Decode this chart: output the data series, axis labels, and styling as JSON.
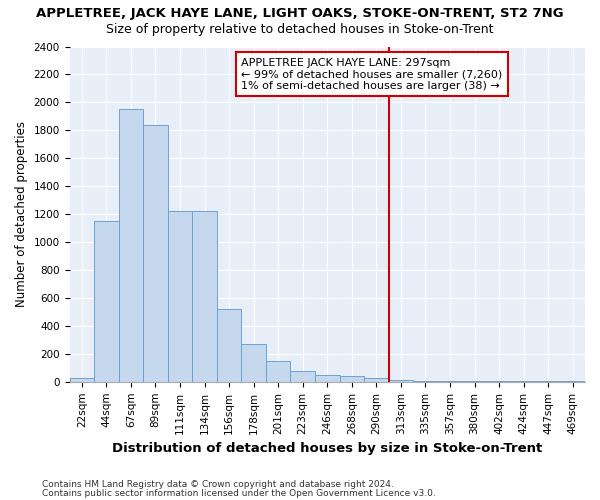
{
  "title": "APPLETREE, JACK HAYE LANE, LIGHT OAKS, STOKE-ON-TRENT, ST2 7NG",
  "subtitle": "Size of property relative to detached houses in Stoke-on-Trent",
  "xlabel": "Distribution of detached houses by size in Stoke-on-Trent",
  "ylabel": "Number of detached properties",
  "footnote1": "Contains HM Land Registry data © Crown copyright and database right 2024.",
  "footnote2": "Contains public sector information licensed under the Open Government Licence v3.0.",
  "categories": [
    "22sqm",
    "44sqm",
    "67sqm",
    "89sqm",
    "111sqm",
    "134sqm",
    "156sqm",
    "178sqm",
    "201sqm",
    "223sqm",
    "246sqm",
    "268sqm",
    "290sqm",
    "313sqm",
    "335sqm",
    "357sqm",
    "380sqm",
    "402sqm",
    "424sqm",
    "447sqm",
    "469sqm"
  ],
  "values": [
    30,
    1150,
    1950,
    1840,
    1220,
    1220,
    520,
    270,
    150,
    80,
    50,
    40,
    30,
    15,
    8,
    5,
    4,
    3,
    3,
    3,
    3
  ],
  "bar_color": "#c5d8ee",
  "bar_edge_color": "#6ba3d0",
  "vline_color": "#cc0000",
  "vline_linewidth": 1.5,
  "annotation_text": "APPLETREE JACK HAYE LANE: 297sqm\n← 99% of detached houses are smaller (7,260)\n1% of semi-detached houses are larger (38) →",
  "annotation_box_color": "white",
  "annotation_box_edge": "#cc0000",
  "ylim": [
    0,
    2400
  ],
  "yticks": [
    0,
    200,
    400,
    600,
    800,
    1000,
    1200,
    1400,
    1600,
    1800,
    2000,
    2200,
    2400
  ],
  "bg_color": "#e8eef8",
  "grid_color": "white",
  "title_fontsize": 9.5,
  "subtitle_fontsize": 9,
  "xlabel_fontsize": 9.5,
  "ylabel_fontsize": 8.5,
  "tick_fontsize": 7.5,
  "footnote_fontsize": 6.5,
  "annotation_fontsize": 8
}
